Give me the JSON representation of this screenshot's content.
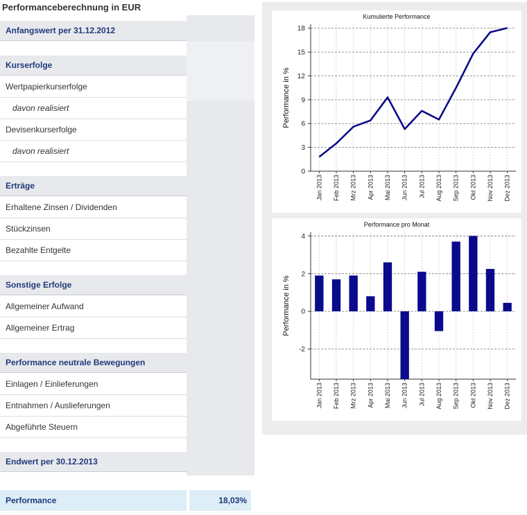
{
  "page_title": "Performanceberechnung in EUR",
  "rows": [
    {
      "type": "header",
      "label": "Anfangswert per 31.12.2012"
    },
    {
      "type": "header",
      "label": "Kurserfolge"
    },
    {
      "type": "item",
      "label": "Wertpapierkurserfolge"
    },
    {
      "type": "italic",
      "label": "davon realisiert"
    },
    {
      "type": "item",
      "label": "Devisenkurserfolge"
    },
    {
      "type": "italic",
      "label": "davon realisiert"
    },
    {
      "type": "header",
      "label": "Erträge"
    },
    {
      "type": "item",
      "label": "Erhaltene Zinsen / Dividenden"
    },
    {
      "type": "item",
      "label": "Stückzinsen"
    },
    {
      "type": "item",
      "label": "Bezahlte Entgelte"
    },
    {
      "type": "header",
      "label": "Sonstige Erfolge"
    },
    {
      "type": "item",
      "label": "Allgemeiner Aufwand"
    },
    {
      "type": "item",
      "label": "Allgemeiner Ertrag"
    },
    {
      "type": "header",
      "label": "Performance neutrale Bewegungen"
    },
    {
      "type": "item",
      "label": "Einlagen / Einlieferungen"
    },
    {
      "type": "item",
      "label": "Entnahmen / Auslieferungen"
    },
    {
      "type": "item",
      "label": "Abgeführte Steuern"
    },
    {
      "type": "header",
      "label": "Endwert per 30.12.2013"
    }
  ],
  "performance": {
    "label": "Performance",
    "value": "18,03%"
  },
  "colors": {
    "header_text": "#1f3a7a",
    "line": "#0a0a8c",
    "bar": "#0a0a8c",
    "header_bg": "#e8e9ed",
    "perf_bg": "#ddeef8"
  },
  "chart_data": [
    {
      "type": "line",
      "title": "Kumulierte Performance",
      "xlabel": "",
      "ylabel": "Performance in %",
      "categories": [
        "Jan 2013",
        "Feb 2013",
        "Mrz 2013",
        "Apr 2013",
        "Mai 2013",
        "Jun 2013",
        "Jul 2013",
        "Aug 2013",
        "Sep 2013",
        "Okt 2013",
        "Nov 2013",
        "Dez 2013"
      ],
      "values": [
        1.8,
        3.5,
        5.6,
        6.4,
        9.3,
        5.3,
        7.6,
        6.5,
        10.5,
        14.8,
        17.5,
        18.03
      ],
      "ylim": [
        0,
        18.5
      ],
      "yticks": [
        0,
        3,
        6,
        9,
        12,
        15,
        18
      ],
      "grid": true
    },
    {
      "type": "bar",
      "title": "Performance pro Monat",
      "xlabel": "",
      "ylabel": "Performance in %",
      "categories": [
        "Jan 2013",
        "Feb 2013",
        "Mrz 2013",
        "Apr 2013",
        "Mai 2013",
        "Jun 2013",
        "Jul 2013",
        "Aug 2013",
        "Sep 2013",
        "Okt 2013",
        "Nov 2013",
        "Dez 2013"
      ],
      "values": [
        1.9,
        1.7,
        1.9,
        0.8,
        2.6,
        -3.6,
        2.1,
        -1.05,
        3.7,
        4.0,
        2.25,
        0.45
      ],
      "ylim": [
        -3.6,
        4.2
      ],
      "yticks": [
        -2,
        0,
        2,
        4
      ],
      "grid": true
    }
  ]
}
